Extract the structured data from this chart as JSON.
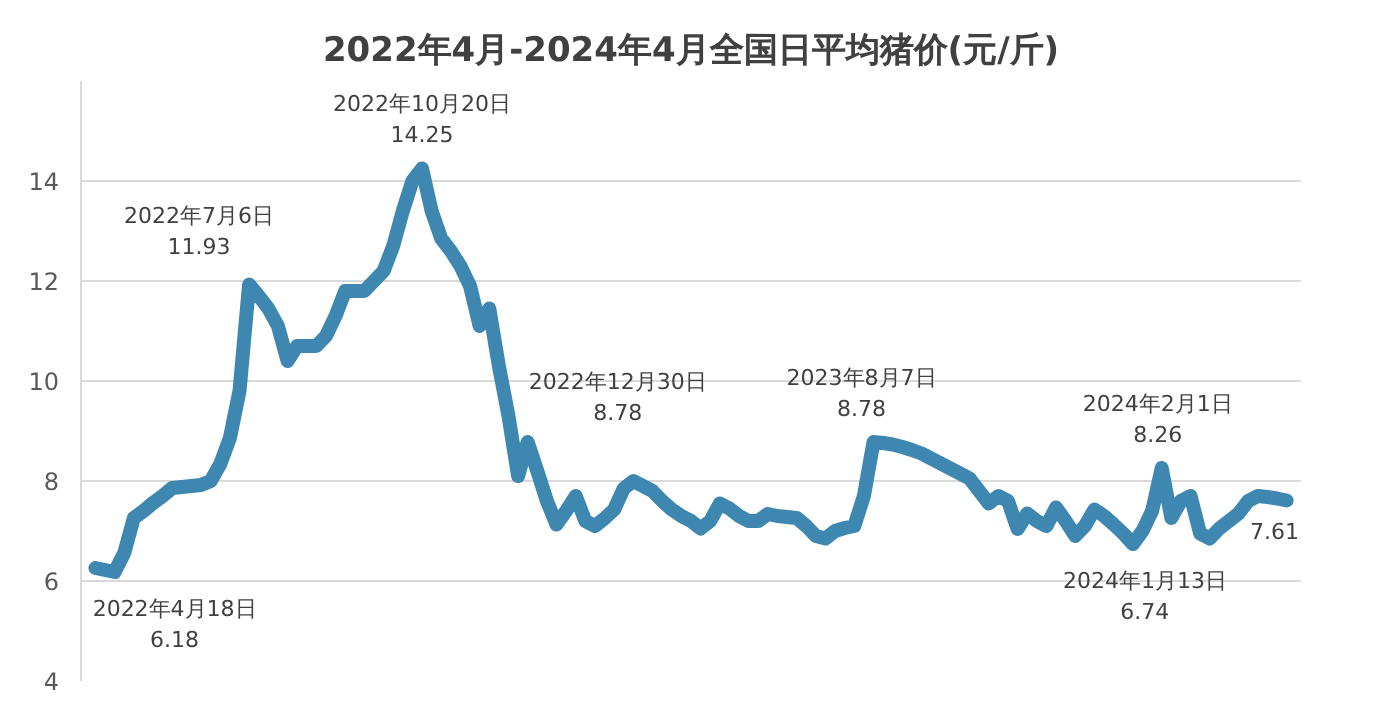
{
  "chart_data": {
    "type": "line",
    "title": "2022年4月-2024年4月全国日平均猪价(元/斤)",
    "categories": [
      null,
      null,
      null,
      null,
      null,
      null,
      null,
      null,
      null,
      null,
      null,
      null,
      null,
      null,
      null,
      null,
      null,
      null,
      null,
      null,
      null,
      null,
      null,
      null,
      null,
      null,
      null,
      null,
      null,
      null,
      null,
      null,
      null,
      null,
      null,
      null,
      null,
      null,
      null,
      null,
      null,
      null,
      null,
      null,
      null,
      null,
      null,
      null,
      null,
      null,
      null,
      null,
      null,
      null,
      null,
      null,
      null,
      null,
      null,
      null,
      null,
      null,
      null,
      null,
      null,
      null,
      null,
      null,
      null,
      null,
      null,
      null,
      null,
      null,
      null,
      null,
      null,
      null,
      null,
      null,
      null,
      null,
      null,
      null,
      null,
      null,
      null,
      null,
      null,
      null,
      null,
      null,
      null,
      null,
      null,
      null,
      null,
      null,
      null,
      null,
      null,
      null,
      null,
      null,
      null,
      null,
      null,
      null,
      null,
      null,
      null,
      null,
      null,
      null,
      null,
      null,
      null,
      null,
      null,
      null,
      null,
      null,
      null,
      null,
      null
    ],
    "series": [
      {
        "color": "#3d87b0",
        "values": [
          6.26,
          6.22,
          6.18,
          6.56,
          7.26,
          7.4,
          7.56,
          7.7,
          7.86,
          7.88,
          7.9,
          7.92,
          8.0,
          8.34,
          8.86,
          9.8,
          11.93,
          11.7,
          11.45,
          11.1,
          10.4,
          10.7,
          10.7,
          10.7,
          10.9,
          11.3,
          11.8,
          11.8,
          11.8,
          12.0,
          12.2,
          12.7,
          13.4,
          14.0,
          14.25,
          13.4,
          12.85,
          12.6,
          12.3,
          11.9,
          11.1,
          11.45,
          10.3,
          9.3,
          8.1,
          8.78,
          8.2,
          7.6,
          7.13,
          7.4,
          7.7,
          7.2,
          7.1,
          7.25,
          7.43,
          7.85,
          8.0,
          7.9,
          7.8,
          7.6,
          7.43,
          7.3,
          7.2,
          7.05,
          7.2,
          7.55,
          7.45,
          7.3,
          7.2,
          7.2,
          7.34,
          7.3,
          7.28,
          7.26,
          7.1,
          6.9,
          6.85,
          7.0,
          7.06,
          7.1,
          7.7,
          8.78,
          8.76,
          8.73,
          8.68,
          8.62,
          8.55,
          8.45,
          8.35,
          8.25,
          8.15,
          8.05,
          7.8,
          7.55,
          7.7,
          7.6,
          7.04,
          7.35,
          7.2,
          7.1,
          7.47,
          7.2,
          6.9,
          7.1,
          7.43,
          7.3,
          7.13,
          6.95,
          6.74,
          7.0,
          7.4,
          8.26,
          7.26,
          7.6,
          7.7,
          6.95,
          6.85,
          7.05,
          7.2,
          7.35,
          7.6,
          7.7,
          7.68,
          7.65,
          7.61
        ]
      }
    ],
    "ylim": [
      4,
      16
    ],
    "yticks": [
      4,
      6,
      8,
      10,
      12,
      14
    ],
    "tick_labels": "y",
    "grid": "y",
    "line_style": "solid",
    "annotations": [
      "2022年4月18日\n6.18",
      "2022年7月6日\n11.93",
      "2022年10月20日\n14.25",
      "2022年12月30日\n8.78",
      "2023年8月7日\n8.78",
      "2024年1月13日\n6.74",
      "2024年2月1日\n8.26",
      "7.61"
    ]
  }
}
